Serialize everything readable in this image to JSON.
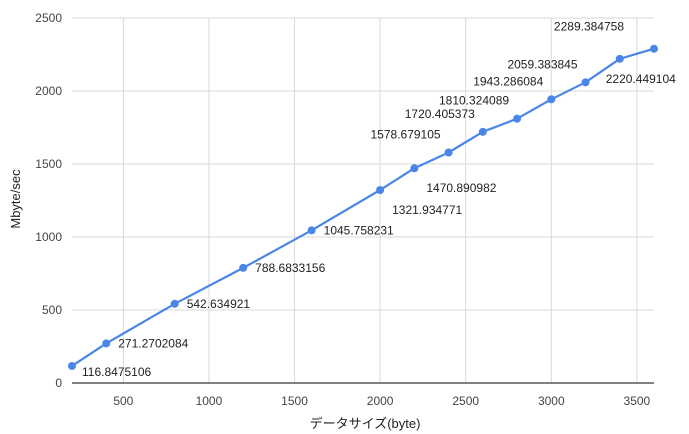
{
  "chart_data": {
    "type": "line",
    "title": "",
    "xlabel": "データサイズ(byte)",
    "ylabel": "Mbyte/sec",
    "xlim": [
      200,
      3600
    ],
    "ylim": [
      0,
      2500
    ],
    "x_ticks": [
      500,
      1000,
      1500,
      2000,
      2500,
      3000,
      3500
    ],
    "y_ticks": [
      0,
      500,
      1000,
      1500,
      2000,
      2500
    ],
    "grid": true,
    "legend": "none",
    "series": [
      {
        "color": "#4a86e8",
        "x": [
          200,
          400,
          800,
          1200,
          1600,
          2000,
          2200,
          2400,
          2600,
          2800,
          3000,
          3200,
          3400,
          3600
        ],
        "y": [
          116.8475106,
          271.2702084,
          542.634921,
          788.6833156,
          1045.758231,
          1321.934771,
          1470.890982,
          1578.679105,
          1720.405373,
          1810.324089,
          1943.286084,
          2059.383845,
          2220.449104,
          2289.384758
        ],
        "labels": [
          "116.8475106",
          "271.2702084",
          "542.634921",
          "788.6833156",
          "1045.758231",
          "1321.934771",
          "1470.890982",
          "1578.679105",
          "1720.405373",
          "1810.324089",
          "1943.286084",
          "2059.383845",
          "2220.449104",
          "2289.384758"
        ]
      }
    ]
  }
}
